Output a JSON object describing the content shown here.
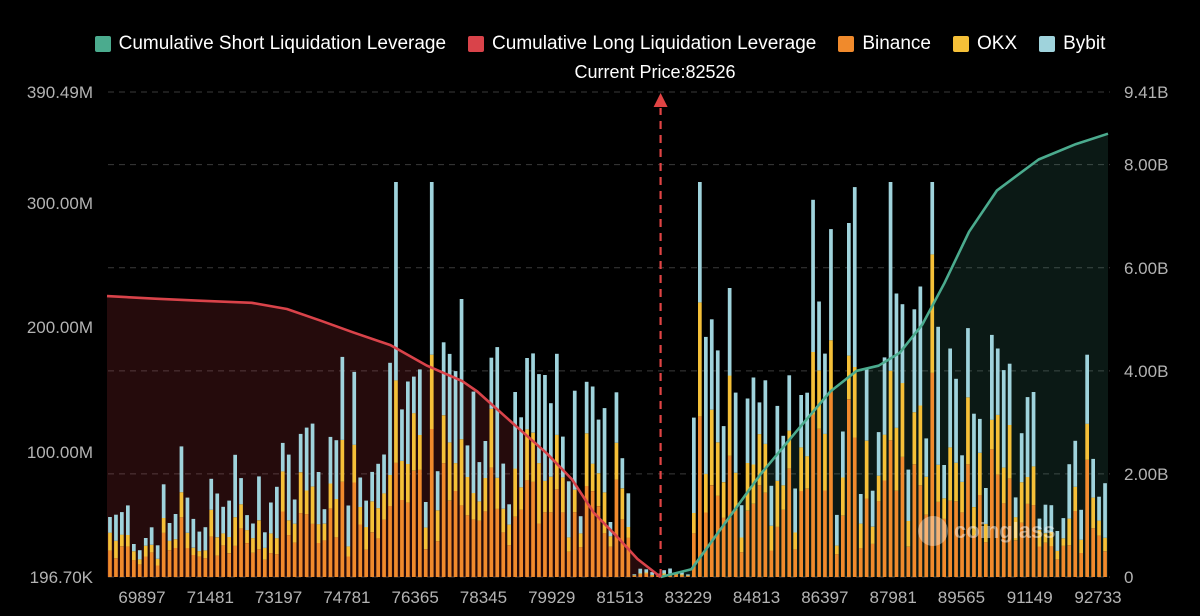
{
  "legend": [
    {
      "label": "Cumulative Short Liquidation Leverage",
      "color": "#4bab8e"
    },
    {
      "label": "Cumulative Long Liquidation Leverage",
      "color": "#d9434a"
    },
    {
      "label": "Binance",
      "color": "#f08a2c"
    },
    {
      "label": "OKX",
      "color": "#f5c038"
    },
    {
      "label": "Bybit",
      "color": "#9fd3dc"
    }
  ],
  "current_price_label": "Current Price:82526",
  "watermark": "coinglass",
  "colors": {
    "short_line": "#4bab8e",
    "long_line": "#d9434a",
    "binance": "#f08a2c",
    "okx": "#f5c038",
    "bybit": "#9fd3dc",
    "grid": "#3a3a3a",
    "price_marker": "#e04444"
  },
  "chart_data": {
    "type": "bar",
    "x_tick_labels": [
      "69897",
      "71481",
      "73197",
      "74781",
      "76365",
      "78345",
      "79929",
      "81513",
      "83229",
      "84813",
      "86397",
      "87981",
      "89565",
      "91149",
      "92733"
    ],
    "x_range": [
      69897,
      92733
    ],
    "current_price": 82526,
    "y_left_tick_labels": [
      "196.70K",
      "100.00M",
      "200.00M",
      "300.00M",
      "390.49M"
    ],
    "y_left_ticks": [
      0.1967,
      100,
      200,
      300,
      390.49
    ],
    "y_left_range_m": [
      0.1967,
      390.49
    ],
    "y_right_tick_labels": [
      "0",
      "2.00B",
      "4.00B",
      "6.00B",
      "8.00B",
      "9.41B"
    ],
    "y_right_ticks": [
      0,
      2,
      4,
      6,
      8,
      9.41
    ],
    "y_right_range_b": [
      0,
      9.41
    ],
    "grid": true,
    "series": [
      {
        "name": "Cumulative Long Liquidation Leverage",
        "type": "line",
        "axis": "right",
        "points": [
          [
            69897,
            5.45
          ],
          [
            71000,
            5.4
          ],
          [
            72000,
            5.36
          ],
          [
            73197,
            5.32
          ],
          [
            74000,
            5.2
          ],
          [
            74781,
            4.97
          ],
          [
            75500,
            4.75
          ],
          [
            76365,
            4.5
          ],
          [
            77200,
            4.1
          ],
          [
            78000,
            3.8
          ],
          [
            78345,
            3.6
          ],
          [
            79000,
            3.1
          ],
          [
            79929,
            2.4
          ],
          [
            80500,
            1.9
          ],
          [
            81000,
            1.25
          ],
          [
            81513,
            0.8
          ],
          [
            82000,
            0.35
          ],
          [
            82526,
            0.0
          ]
        ]
      },
      {
        "name": "Cumulative Short Liquidation Leverage",
        "type": "line",
        "axis": "right",
        "points": [
          [
            82526,
            0.0
          ],
          [
            83229,
            0.15
          ],
          [
            84000,
            1.05
          ],
          [
            84813,
            2.0
          ],
          [
            85600,
            2.8
          ],
          [
            86397,
            3.6
          ],
          [
            87000,
            4.0
          ],
          [
            87500,
            4.1
          ],
          [
            87981,
            4.35
          ],
          [
            88500,
            4.9
          ],
          [
            89000,
            5.7
          ],
          [
            89565,
            6.7
          ],
          [
            90200,
            7.5
          ],
          [
            91149,
            8.1
          ],
          [
            92000,
            8.4
          ],
          [
            92733,
            8.6
          ]
        ]
      }
    ]
  }
}
